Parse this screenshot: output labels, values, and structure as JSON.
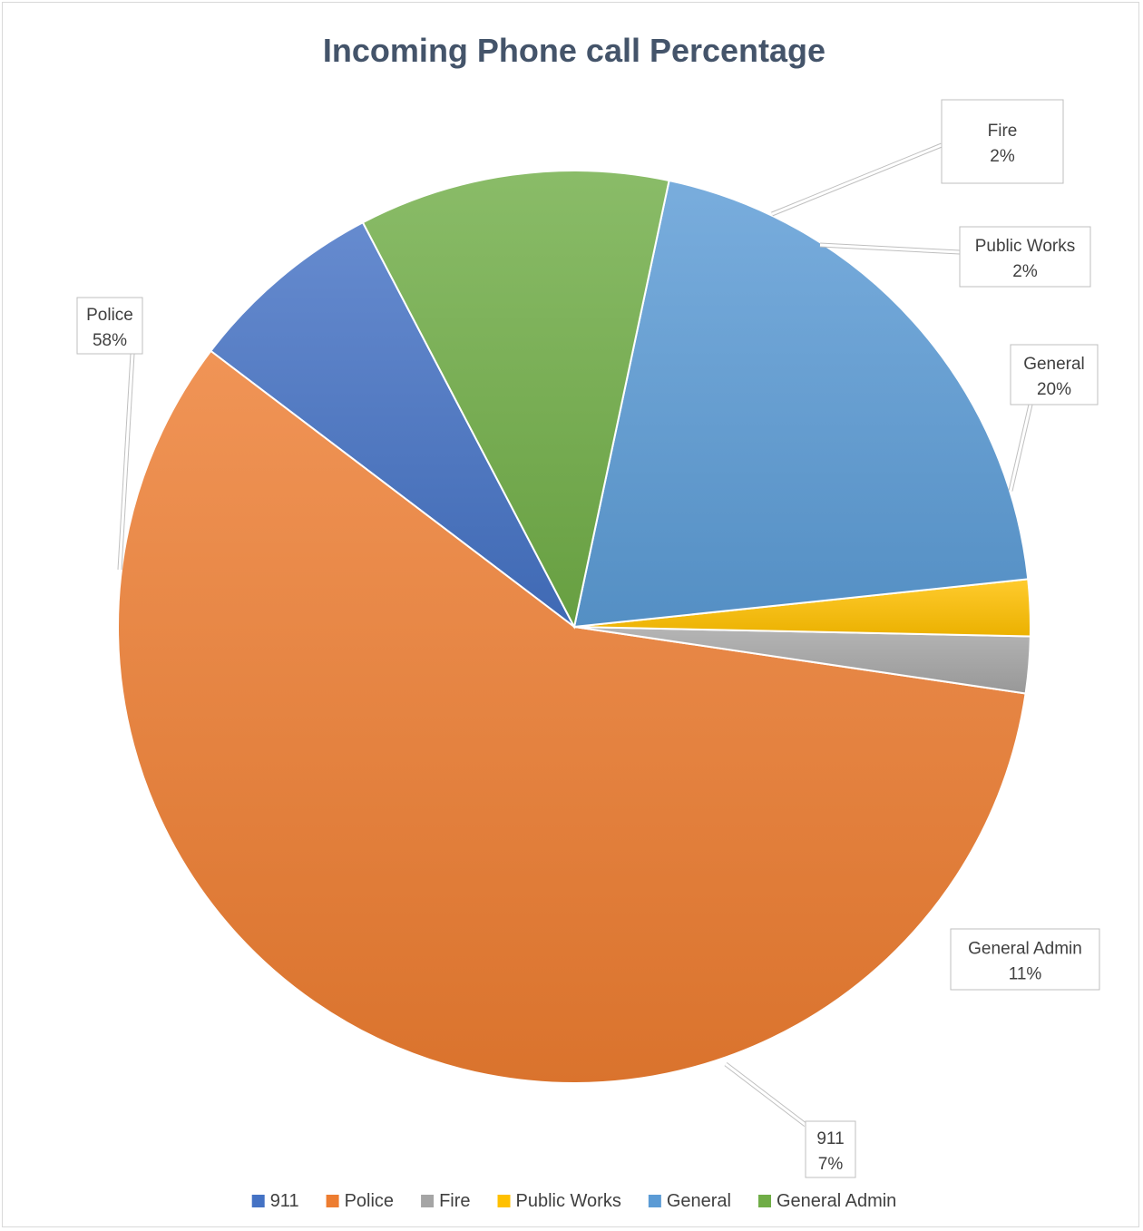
{
  "chart_data": {
    "type": "pie",
    "title": "Incoming Phone call Percentage",
    "start_angle_deg": -117.6,
    "direction": "counterclockwise",
    "legend_position": "bottom",
    "slices": [
      {
        "name": "911",
        "value": 7,
        "label": "7%",
        "color": "#4472c4"
      },
      {
        "name": "Police",
        "value": 58,
        "label": "58%",
        "color": "#ed7d31"
      },
      {
        "name": "Fire",
        "value": 2,
        "label": "2%",
        "color": "#a5a5a5"
      },
      {
        "name": "Public Works",
        "value": 2,
        "label": "2%",
        "color": "#ffc000"
      },
      {
        "name": "General",
        "value": 20,
        "label": "20%",
        "color": "#5b9bd5"
      },
      {
        "name": "General Admin",
        "value": 11,
        "label": "11%",
        "color": "#70ad47"
      }
    ]
  }
}
